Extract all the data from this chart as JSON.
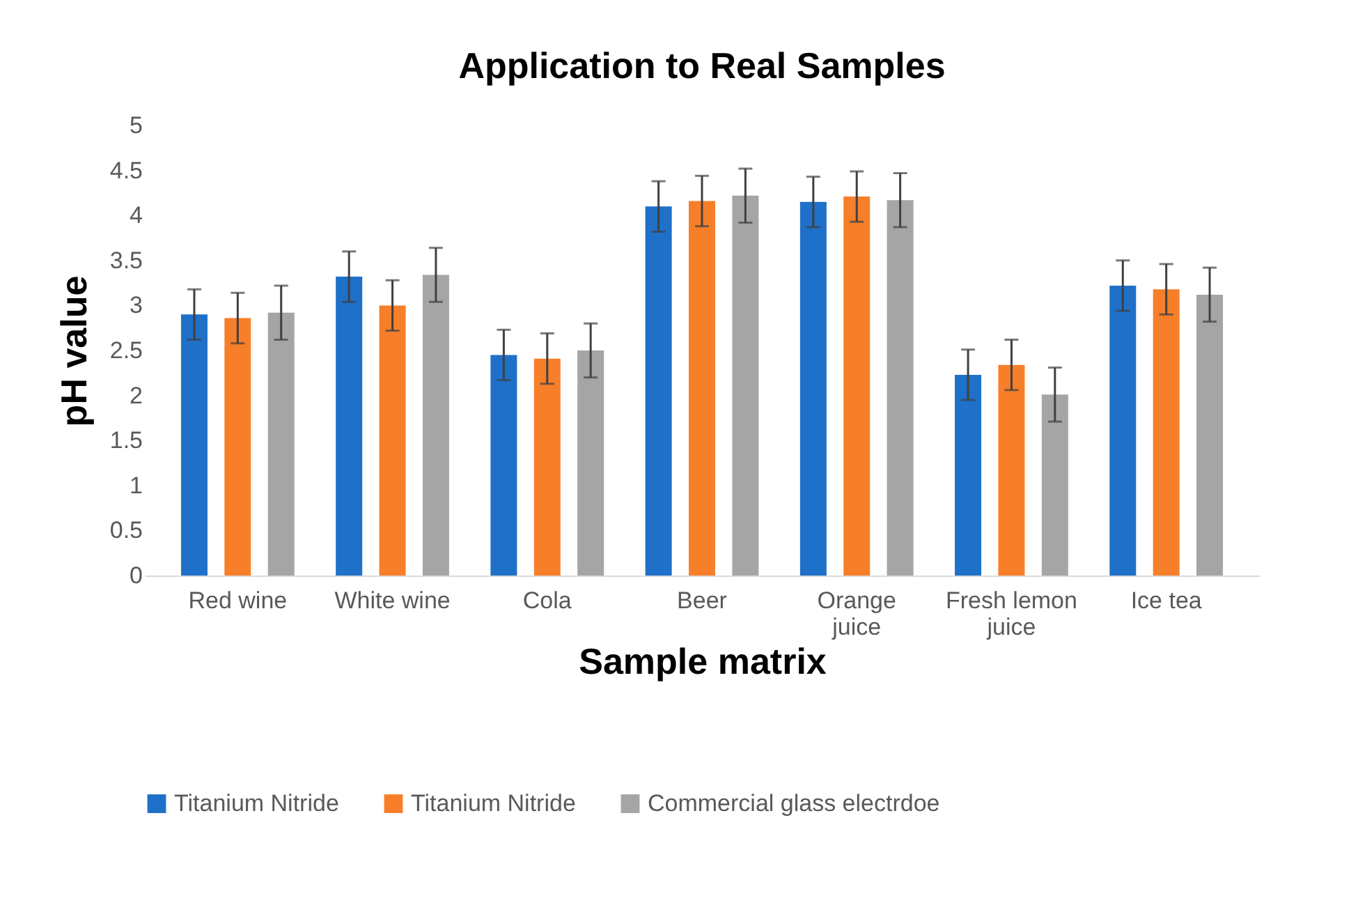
{
  "chart_data": {
    "type": "bar",
    "title": "Application to Real Samples",
    "xlabel": "Sample matrix",
    "ylabel": "pH value",
    "categories": [
      "Red wine",
      "White wine",
      "Cola",
      "Beer",
      "Orange juice",
      "Fresh lemon juice",
      "Ice tea"
    ],
    "series": [
      {
        "name": "Titanium Nitride",
        "color": "#1f70c8",
        "values": [
          2.9,
          3.32,
          2.45,
          4.1,
          4.15,
          2.23,
          3.22
        ],
        "errors": [
          0.28,
          0.28,
          0.28,
          0.28,
          0.28,
          0.28,
          0.28
        ]
      },
      {
        "name": "Titanium Nitride",
        "color": "#f77f2a",
        "values": [
          2.86,
          3.0,
          2.41,
          4.16,
          4.21,
          2.34,
          3.18
        ],
        "errors": [
          0.28,
          0.28,
          0.28,
          0.28,
          0.28,
          0.28,
          0.28
        ]
      },
      {
        "name": "Commercial glass electrdoe",
        "color": "#a5a5a5",
        "values": [
          2.92,
          3.34,
          2.5,
          4.22,
          4.17,
          2.01,
          3.12
        ],
        "errors": [
          0.3,
          0.3,
          0.3,
          0.3,
          0.3,
          0.3,
          0.3
        ]
      }
    ],
    "ylim": [
      0,
      5
    ],
    "yticks": [
      0,
      0.5,
      1,
      1.5,
      2,
      2.5,
      3,
      3.5,
      4,
      4.5,
      5
    ],
    "grid": false,
    "legend": "bottom"
  }
}
